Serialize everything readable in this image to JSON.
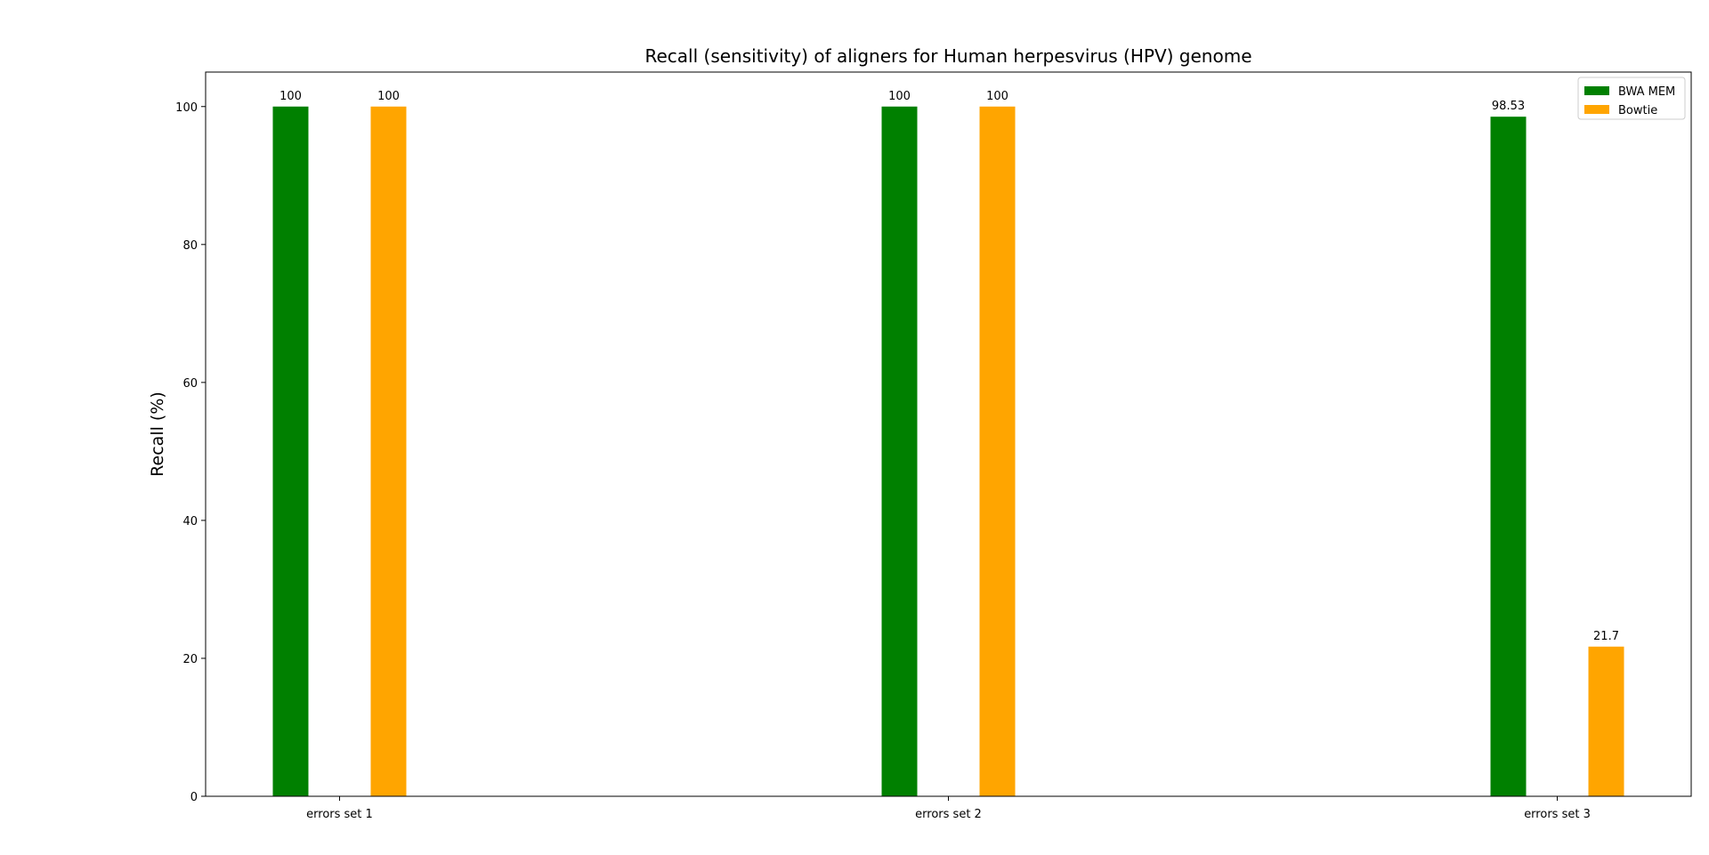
{
  "chart_data": {
    "type": "bar",
    "title": "Recall (sensitivity) of aligners for Human herpesvirus (HPV) genome",
    "xlabel": "",
    "ylabel": "Recall (%)",
    "ylim": [
      0,
      105
    ],
    "yticks": [
      0,
      20,
      40,
      60,
      80,
      100
    ],
    "categories": [
      "errors set 1",
      "errors set 2",
      "errors set 3"
    ],
    "series": [
      {
        "name": "BWA MEM",
        "color": "#008000",
        "values": [
          100,
          100,
          98.53
        ],
        "labels": [
          "100",
          "100",
          "98.53"
        ]
      },
      {
        "name": "Bowtie",
        "color": "#FFA500",
        "values": [
          100,
          100,
          21.7
        ],
        "labels": [
          "100",
          "100",
          "21.7"
        ]
      }
    ],
    "legend_position": "top-right",
    "grid": false
  }
}
